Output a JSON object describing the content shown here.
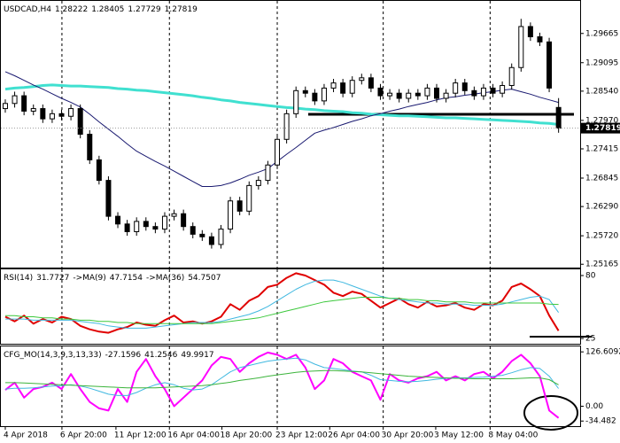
{
  "chart_data": [
    {
      "type": "candlestick",
      "title": "USDCAD,H4",
      "open": [
        1.282,
        1.283,
        1.2845,
        1.2815,
        1.282,
        1.28,
        1.281,
        1.2805,
        1.282,
        1.277,
        1.272,
        1.268,
        1.261,
        1.2595,
        1.258,
        1.26,
        1.259,
        1.2585,
        1.261,
        1.2615,
        1.259,
        1.2575,
        1.257,
        1.2555,
        1.2585,
        1.264,
        1.262,
        1.267,
        1.268,
        1.271,
        1.276,
        1.281,
        1.2855,
        1.285,
        1.2835,
        1.286,
        1.287,
        1.285,
        1.2875,
        1.288,
        1.286,
        1.2845,
        1.285,
        1.284,
        1.285,
        1.2845,
        1.286,
        1.284,
        1.285,
        1.287,
        1.2855,
        1.2845,
        1.286,
        1.285,
        1.2865,
        1.29,
        1.298,
        1.296,
        1.295,
        1.28222
      ],
      "high": [
        1.2838,
        1.2853,
        1.2853,
        1.2828,
        1.2828,
        1.2818,
        1.2818,
        1.2828,
        1.2828,
        1.2778,
        1.2728,
        1.2688,
        1.2618,
        1.2603,
        1.2608,
        1.2608,
        1.2598,
        1.2618,
        1.2623,
        1.2623,
        1.2598,
        1.2583,
        1.2578,
        1.2593,
        1.2648,
        1.2648,
        1.2678,
        1.2688,
        1.2718,
        1.2768,
        1.2818,
        1.2863,
        1.2863,
        1.2858,
        1.2868,
        1.2878,
        1.2878,
        1.2883,
        1.2888,
        1.2888,
        1.2868,
        1.2858,
        1.2858,
        1.2858,
        1.2858,
        1.2868,
        1.2868,
        1.2858,
        1.2878,
        1.2878,
        1.2863,
        1.2868,
        1.2868,
        1.2873,
        1.2908,
        1.2995,
        1.2988,
        1.2968,
        1.2958,
        1.28405
      ],
      "low": [
        1.2812,
        1.2822,
        1.2807,
        1.2807,
        1.2792,
        1.2792,
        1.2797,
        1.2797,
        1.2762,
        1.2712,
        1.2672,
        1.2602,
        1.2587,
        1.2572,
        1.2572,
        1.2582,
        1.2577,
        1.2577,
        1.2602,
        1.2582,
        1.2567,
        1.2562,
        1.2547,
        1.2547,
        1.2577,
        1.2612,
        1.2612,
        1.2662,
        1.2672,
        1.2702,
        1.2752,
        1.2802,
        1.2842,
        1.2827,
        1.2827,
        1.2852,
        1.2842,
        1.2842,
        1.2867,
        1.2852,
        1.2837,
        1.2837,
        1.2832,
        1.2832,
        1.2837,
        1.2837,
        1.2832,
        1.2832,
        1.2842,
        1.2847,
        1.2837,
        1.2837,
        1.2842,
        1.2842,
        1.2857,
        1.2892,
        1.2952,
        1.2942,
        1.2852,
        1.27729
      ],
      "close": [
        1.283,
        1.2845,
        1.2815,
        1.282,
        1.28,
        1.281,
        1.2805,
        1.282,
        1.277,
        1.272,
        1.268,
        1.261,
        1.2595,
        1.258,
        1.26,
        1.259,
        1.2585,
        1.261,
        1.2615,
        1.259,
        1.2575,
        1.257,
        1.2555,
        1.2585,
        1.264,
        1.262,
        1.267,
        1.268,
        1.271,
        1.276,
        1.281,
        1.2855,
        1.285,
        1.2835,
        1.286,
        1.287,
        1.285,
        1.2875,
        1.288,
        1.286,
        1.2845,
        1.285,
        1.284,
        1.285,
        1.2845,
        1.286,
        1.284,
        1.285,
        1.287,
        1.2855,
        1.2845,
        1.286,
        1.285,
        1.2865,
        1.29,
        1.298,
        1.296,
        1.295,
        1.286,
        1.27819
      ],
      "series": [
        {
          "color": "#40e0d0",
          "width": 3,
          "values": [
            1.2858,
            1.286,
            1.2861,
            1.2863,
            1.2865,
            1.2866,
            1.2865,
            1.2864,
            1.2864,
            1.2863,
            1.2862,
            1.2861,
            1.2859,
            1.2858,
            1.2856,
            1.2855,
            1.2853,
            1.2851,
            1.2849,
            1.2847,
            1.2845,
            1.2842,
            1.284,
            1.2837,
            1.2835,
            1.2832,
            1.283,
            1.2828,
            1.2826,
            1.2824,
            1.2822,
            1.2821,
            1.2819,
            1.2818,
            1.2816,
            1.2815,
            1.2814,
            1.2812,
            1.2811,
            1.2809,
            1.2808,
            1.2807,
            1.2806,
            1.2806,
            1.2805,
            1.2804,
            1.2803,
            1.2802,
            1.2802,
            1.2801,
            1.28,
            1.2799,
            1.2798,
            1.2797,
            1.2796,
            1.2795,
            1.2794,
            1.2792,
            1.2791,
            1.2789
          ]
        },
        {
          "color": "#191970",
          "width": 1,
          "values": [
            1.2892,
            1.2884,
            1.2875,
            1.2866,
            1.2858,
            1.2849,
            1.284,
            1.2832,
            1.2823,
            1.2809,
            1.2794,
            1.278,
            1.2766,
            1.2751,
            1.2737,
            1.2727,
            1.2717,
            1.2708,
            1.2698,
            1.2688,
            1.2678,
            1.2668,
            1.2668,
            1.267,
            1.2675,
            1.2682,
            1.269,
            1.2696,
            1.2703,
            1.2717,
            1.2731,
            1.2744,
            1.2758,
            1.2772,
            1.2778,
            1.2783,
            1.2789,
            1.2795,
            1.28,
            1.2806,
            1.281,
            1.2815,
            1.2819,
            1.2824,
            1.2828,
            1.2832,
            1.2837,
            1.2841,
            1.2843,
            1.2846,
            1.2848,
            1.2851,
            1.2853,
            1.2856,
            1.2858,
            1.2853,
            1.2848,
            1.2842,
            1.2837,
            1.2832
          ]
        }
      ],
      "xlim": [
        -0.47,
        61.3
      ],
      "ylim": [
        1.251,
        1.303
      ],
      "yticks": [
        1.29665,
        1.29095,
        {
          "value": 1.2854,
          "label": "1.28540"
        },
        {
          "value": 1.2797,
          "label": "1.27970"
        },
        1.27415,
        1.26845,
        {
          "value": 1.2629,
          "label": "1.26290"
        },
        {
          "value": 1.2572,
          "label": "1.25720"
        },
        1.25165
      ]
    },
    {
      "type": "line",
      "title": "RSI(14)",
      "series": [
        {
          "color": "#e00000",
          "width": 2,
          "values": [
            44,
            40,
            45,
            38,
            42,
            39,
            44,
            42,
            36,
            33,
            31,
            30,
            33,
            35,
            39,
            37,
            36,
            41,
            45,
            39,
            40,
            38,
            40,
            44,
            55,
            50,
            58,
            62,
            70,
            72,
            78,
            82,
            80,
            76,
            72,
            65,
            62,
            66,
            64,
            58,
            52,
            56,
            60,
            55,
            52,
            57,
            53,
            54,
            56,
            52,
            50,
            55,
            54,
            58,
            70,
            73,
            68,
            62,
            45,
            31.7727
          ]
        },
        {
          "name": "->MA(9)",
          "color": "#40b8e0",
          "width": 1,
          "values": [
            42,
            42,
            42,
            41,
            41,
            41,
            41,
            41,
            40,
            39,
            38,
            36,
            35,
            34,
            34,
            34,
            35,
            36,
            37,
            38,
            39,
            39,
            39,
            40,
            42,
            44,
            46,
            49,
            53,
            58,
            63,
            68,
            72,
            75,
            76,
            76,
            74,
            71,
            68,
            65,
            62,
            60,
            59,
            58,
            57,
            56,
            56,
            55,
            55,
            55,
            54,
            54,
            54,
            55,
            57,
            59,
            61,
            62,
            59,
            47.7154
          ]
        },
        {
          "name": "->MA(36)",
          "color": "#3cc83c",
          "width": 1,
          "values": [
            45,
            45,
            44,
            44,
            43,
            43,
            42,
            42,
            41,
            41,
            40,
            40,
            39,
            39,
            38,
            38,
            38,
            38,
            38,
            38,
            38,
            38,
            38,
            39,
            40,
            41,
            42,
            43,
            45,
            47,
            49,
            51,
            53,
            55,
            57,
            58,
            59,
            60,
            61,
            61,
            61,
            60,
            60,
            59,
            59,
            58,
            58,
            57,
            57,
            57,
            56,
            56,
            56,
            56,
            56,
            56,
            56,
            56,
            55,
            54.7507
          ]
        }
      ],
      "xlim": [
        -0.47,
        61.3
      ],
      "ylim": [
        20.4,
        85.4
      ],
      "yticks": [
        80,
        25
      ]
    },
    {
      "type": "line",
      "title": "CFG_MO(14,3,9,3,13,33)",
      "series": [
        {
          "color": "#ff00ff",
          "width": 2,
          "values": [
            38,
            55,
            20,
            40,
            45,
            55,
            40,
            75,
            40,
            10,
            -5,
            -10,
            40,
            10,
            80,
            110,
            70,
            40,
            0,
            20,
            40,
            60,
            95,
            115,
            110,
            80,
            100,
            115,
            125,
            120,
            110,
            120,
            90,
            40,
            60,
            110,
            100,
            80,
            70,
            60,
            15,
            75,
            60,
            55,
            65,
            70,
            80,
            60,
            70,
            60,
            75,
            80,
            65,
            80,
            105,
            120,
            100,
            70,
            -10,
            -27.1596
          ]
        },
        {
          "color": "#40b8e0",
          "width": 1,
          "values": [
            40,
            42,
            42,
            43,
            45,
            47,
            48,
            50,
            47,
            42,
            35,
            28,
            25,
            25,
            32,
            42,
            50,
            55,
            50,
            42,
            38,
            40,
            50,
            65,
            80,
            90,
            95,
            100,
            105,
            108,
            110,
            112,
            108,
            98,
            90,
            88,
            85,
            82,
            80,
            72,
            62,
            60,
            58,
            57,
            58,
            60,
            63,
            65,
            66,
            66,
            67,
            68,
            70,
            72,
            78,
            85,
            90,
            88,
            70,
            41.2546
          ]
        },
        {
          "color": "#3cb43c",
          "width": 1,
          "values": [
            55,
            55,
            54,
            53,
            52,
            51,
            50,
            49,
            48,
            47,
            46,
            45,
            44,
            43,
            43,
            43,
            43,
            44,
            45,
            46,
            47,
            48,
            50,
            53,
            56,
            60,
            63,
            66,
            70,
            73,
            76,
            79,
            81,
            82,
            83,
            83,
            82,
            81,
            80,
            78,
            76,
            74,
            72,
            70,
            69,
            68,
            67,
            66,
            65,
            65,
            64,
            64,
            64,
            64,
            64,
            65,
            66,
            66,
            62,
            49.9917
          ]
        }
      ],
      "xlim": [
        -0.47,
        61.3
      ],
      "ylim": [
        -46.4,
        139.3
      ],
      "yticks": [
        126.6092,
        {
          "value": 0,
          "label": "0.00"
        },
        -34.482
      ],
      "xticks": [
        {
          "value": 0,
          "label": "4 Apr 2018"
        },
        {
          "value": 6.04,
          "label": "6 Apr 20:00"
        },
        {
          "value": 11.8,
          "label": "11 Apr 12:00"
        },
        {
          "value": 17.5,
          "label": "16 Apr 04:00"
        },
        {
          "value": 23.1,
          "label": "18 Apr 20:00"
        },
        {
          "value": 29.0,
          "label": "23 Apr 12:00"
        },
        {
          "value": 34.6,
          "label": "26 Apr 04:00"
        },
        {
          "value": 40.3,
          "label": "30 Apr 20:00"
        },
        {
          "value": 45.9,
          "label": "3 May 12:00"
        },
        {
          "value": 51.7,
          "label": "8 May 04:00"
        }
      ]
    }
  ]
}
